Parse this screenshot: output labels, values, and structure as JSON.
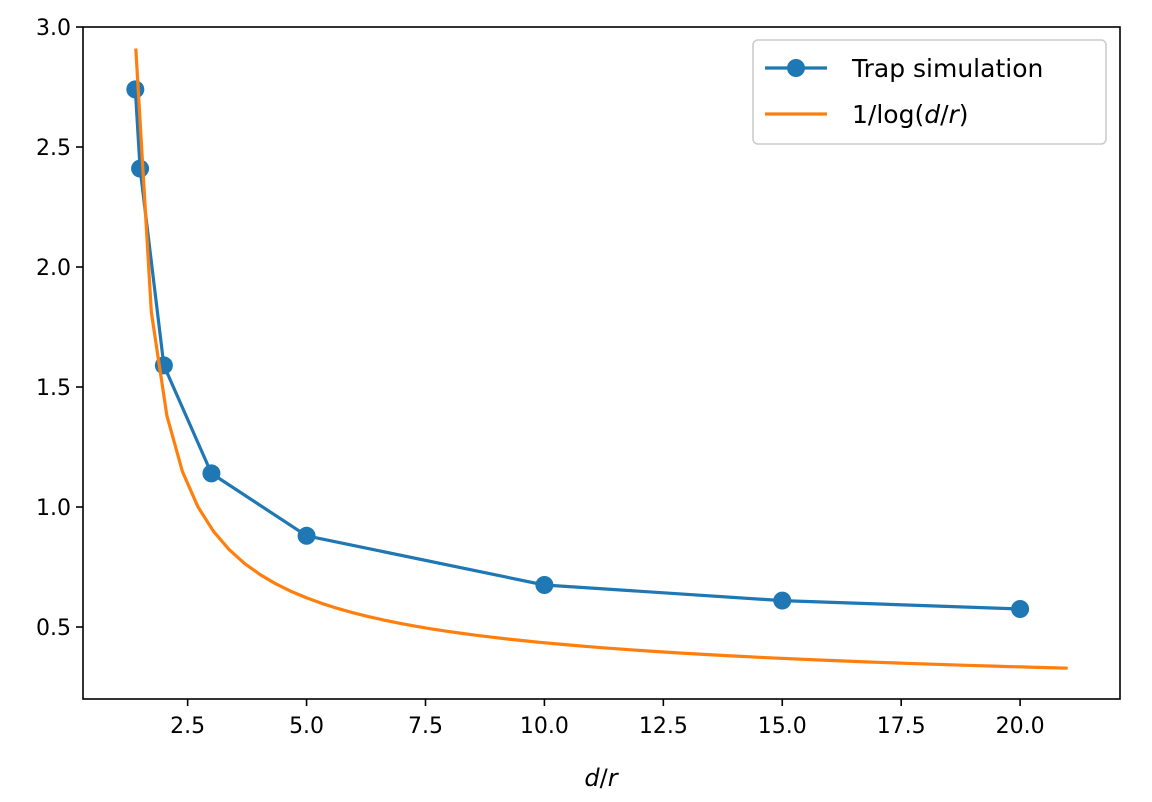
{
  "chart_data": {
    "type": "line",
    "xlabel": "d/r",
    "ylabel": "",
    "xlim": [
      0.3,
      22.1
    ],
    "ylim": [
      0.2,
      3.0
    ],
    "x_ticks": [
      2.5,
      5.0,
      7.5,
      10.0,
      12.5,
      15.0,
      17.5,
      20.0
    ],
    "y_ticks": [
      0.5,
      1.0,
      1.5,
      2.0,
      2.5,
      3.0
    ],
    "x_tick_labels": [
      "2.5",
      "5.0",
      "7.5",
      "10.0",
      "12.5",
      "15.0",
      "17.5",
      "20.0"
    ],
    "y_tick_labels": [
      "0.5",
      "1.0",
      "1.5",
      "2.0",
      "2.5",
      "3.0"
    ],
    "grid": false,
    "legend_position": "top-right",
    "series": [
      {
        "name": "Trap simulation",
        "color": "#1f77b4",
        "marker": "circle",
        "x": [
          1.4,
          1.5,
          2.0,
          3.0,
          5.0,
          10.0,
          15.0,
          20.0
        ],
        "y": [
          2.74,
          2.41,
          1.59,
          1.14,
          0.88,
          0.675,
          0.61,
          0.575
        ]
      },
      {
        "name": "1/log(d/r)",
        "color": "#ff7f0e",
        "marker": "none",
        "function": "1/ln(x)",
        "x_range": [
          1.41,
          21.0
        ]
      }
    ]
  },
  "legend": {
    "sim_label": "Trap simulation",
    "fit_prefix": "1/log(",
    "fit_var_d": "d",
    "fit_slash": "/",
    "fit_var_r": "r",
    "fit_suffix": ")"
  },
  "axis": {
    "x_title_d": "d",
    "x_title_slash": "/",
    "x_title_r": "r"
  }
}
